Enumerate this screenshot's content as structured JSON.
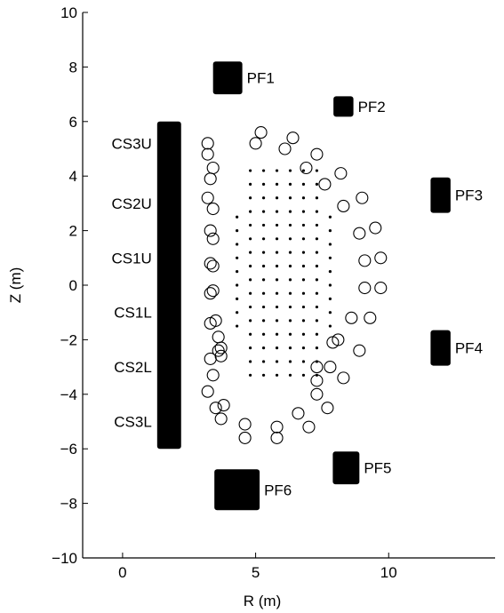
{
  "chart_data": {
    "type": "scatter",
    "title": "",
    "xlabel": "R (m)",
    "ylabel": "Z (m)",
    "xlim": [
      -1.5,
      14
    ],
    "ylim": [
      -10,
      10
    ],
    "xticks": [
      0,
      5,
      10
    ],
    "yticks": [
      -10,
      -8,
      -6,
      -4,
      -2,
      0,
      2,
      4,
      6,
      8,
      10
    ],
    "grid": false,
    "central_solenoid": {
      "r_min": 1.3,
      "r_max": 2.2,
      "z_min": -6.0,
      "z_max": 6.0,
      "labels": [
        {
          "name": "CS3U",
          "z": 5.2
        },
        {
          "name": "CS2U",
          "z": 3.0
        },
        {
          "name": "CS1U",
          "z": 1.0
        },
        {
          "name": "CS1L",
          "z": -1.0
        },
        {
          "name": "CS2L",
          "z": -3.0
        },
        {
          "name": "CS3L",
          "z": -5.0
        }
      ]
    },
    "pf_coils": [
      {
        "name": "PF1",
        "r": 3.95,
        "z": 7.6,
        "dr": 1.1,
        "dz": 1.2
      },
      {
        "name": "PF2",
        "r": 8.3,
        "z": 6.55,
        "dr": 0.75,
        "dz": 0.75
      },
      {
        "name": "PF3",
        "r": 11.95,
        "z": 3.3,
        "dr": 0.75,
        "dz": 1.3
      },
      {
        "name": "PF4",
        "r": 11.95,
        "z": -2.3,
        "dr": 0.75,
        "dz": 1.3
      },
      {
        "name": "PF5",
        "r": 8.4,
        "z": -6.7,
        "dr": 1.0,
        "dz": 1.2
      },
      {
        "name": "PF6",
        "r": 4.3,
        "z": -7.5,
        "dr": 1.7,
        "dz": 1.5
      }
    ],
    "passive_structure_points": [
      {
        "r": 3.2,
        "z": 5.2
      },
      {
        "r": 3.2,
        "z": 4.8
      },
      {
        "r": 3.4,
        "z": 4.3
      },
      {
        "r": 3.3,
        "z": 3.9
      },
      {
        "r": 3.2,
        "z": 3.2
      },
      {
        "r": 3.4,
        "z": 2.8
      },
      {
        "r": 3.3,
        "z": 2.0
      },
      {
        "r": 3.4,
        "z": 1.7
      },
      {
        "r": 3.3,
        "z": 0.8
      },
      {
        "r": 3.4,
        "z": 0.7
      },
      {
        "r": 3.3,
        "z": -0.3
      },
      {
        "r": 3.4,
        "z": -0.2
      },
      {
        "r": 3.3,
        "z": -1.4
      },
      {
        "r": 3.5,
        "z": -1.3
      },
      {
        "r": 3.6,
        "z": -1.9
      },
      {
        "r": 3.6,
        "z": -2.4
      },
      {
        "r": 3.7,
        "z": -2.6
      },
      {
        "r": 3.7,
        "z": -2.3
      },
      {
        "r": 3.3,
        "z": -2.7
      },
      {
        "r": 3.4,
        "z": -3.3
      },
      {
        "r": 3.2,
        "z": -3.9
      },
      {
        "r": 3.5,
        "z": -4.5
      },
      {
        "r": 3.8,
        "z": -4.4
      },
      {
        "r": 3.7,
        "z": -4.9
      },
      {
        "r": 4.6,
        "z": -5.1
      },
      {
        "r": 4.6,
        "z": -5.6
      },
      {
        "r": 5.8,
        "z": -5.2
      },
      {
        "r": 5.8,
        "z": -5.6
      },
      {
        "r": 6.6,
        "z": -4.7
      },
      {
        "r": 7.0,
        "z": -5.2
      },
      {
        "r": 7.3,
        "z": -4.0
      },
      {
        "r": 7.3,
        "z": -3.5
      },
      {
        "r": 7.3,
        "z": -3.0
      },
      {
        "r": 7.8,
        "z": -3.0
      },
      {
        "r": 7.7,
        "z": -4.5
      },
      {
        "r": 8.3,
        "z": -3.4
      },
      {
        "r": 7.9,
        "z": -2.1
      },
      {
        "r": 8.1,
        "z": -2.0
      },
      {
        "r": 8.9,
        "z": -2.4
      },
      {
        "r": 8.6,
        "z": -1.2
      },
      {
        "r": 9.3,
        "z": -1.2
      },
      {
        "r": 9.1,
        "z": -0.1
      },
      {
        "r": 9.7,
        "z": -0.1
      },
      {
        "r": 9.1,
        "z": 0.9
      },
      {
        "r": 9.7,
        "z": 1.0
      },
      {
        "r": 8.9,
        "z": 1.9
      },
      {
        "r": 9.5,
        "z": 2.1
      },
      {
        "r": 8.3,
        "z": 2.9
      },
      {
        "r": 9.0,
        "z": 3.2
      },
      {
        "r": 8.2,
        "z": 4.1
      },
      {
        "r": 7.6,
        "z": 3.7
      },
      {
        "r": 6.9,
        "z": 4.3
      },
      {
        "r": 7.3,
        "z": 4.8
      },
      {
        "r": 6.4,
        "z": 5.4
      },
      {
        "r": 6.1,
        "z": 5.0
      },
      {
        "r": 5.2,
        "z": 5.6
      },
      {
        "r": 5.0,
        "z": 5.2
      }
    ],
    "plasma_grid": {
      "r_values": [
        4.3,
        4.8,
        5.3,
        5.8,
        6.3,
        6.8,
        7.3,
        7.8
      ],
      "z_min": -3.3,
      "z_max": 4.2,
      "z_step": 0.5,
      "z_min_outer": -1.5,
      "z_max_outer": 2.8
    }
  }
}
